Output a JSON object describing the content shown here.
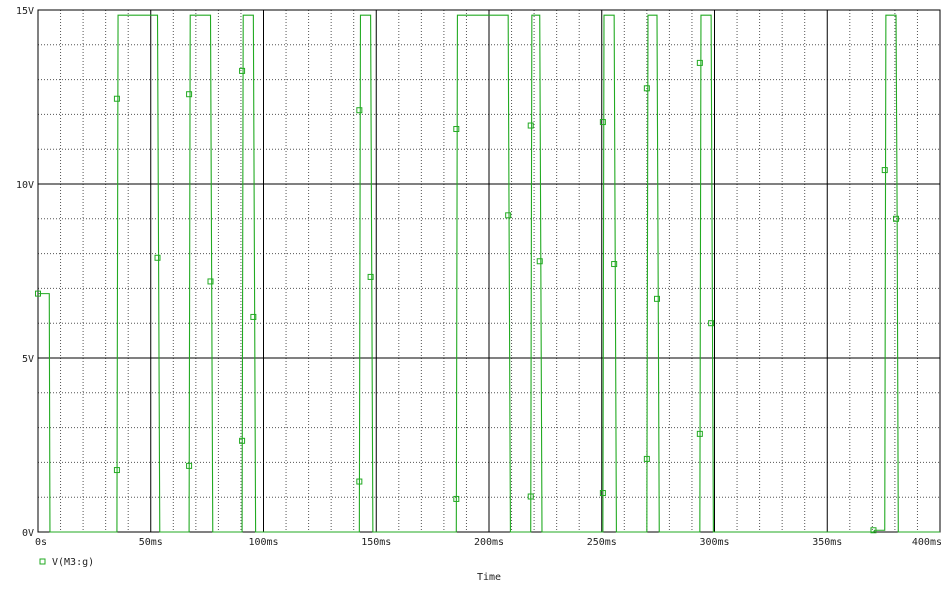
{
  "chart_data": {
    "type": "line",
    "title": "",
    "xlabel": "Time",
    "ylabel": "",
    "x_unit": "s",
    "y_unit": "V",
    "xlim": [
      0,
      0.4
    ],
    "ylim": [
      0,
      15
    ],
    "x_ticks": [
      {
        "value": 0,
        "label": "0s"
      },
      {
        "value": 0.05,
        "label": "50ms"
      },
      {
        "value": 0.1,
        "label": "100ms"
      },
      {
        "value": 0.15,
        "label": "150ms"
      },
      {
        "value": 0.2,
        "label": "200ms"
      },
      {
        "value": 0.25,
        "label": "250ms"
      },
      {
        "value": 0.3,
        "label": "300ms"
      },
      {
        "value": 0.35,
        "label": "350ms"
      },
      {
        "value": 0.4,
        "label": "400ms"
      }
    ],
    "y_ticks": [
      {
        "value": 0,
        "label": "0V"
      },
      {
        "value": 5,
        "label": "5V"
      },
      {
        "value": 10,
        "label": "10V"
      },
      {
        "value": 15,
        "label": "15V"
      }
    ],
    "grid": true,
    "minor_grid_dotted": true,
    "legend_position": "bottom-left",
    "series": [
      {
        "name": "V(M3:g)",
        "color": "#22aa22",
        "marker": "square",
        "points": [
          [
            0.0,
            6.85
          ],
          [
            0.005,
            6.85
          ],
          [
            0.0053,
            0.0
          ],
          [
            0.035,
            0.0
          ],
          [
            0.0355,
            14.85
          ],
          [
            0.053,
            14.85
          ],
          [
            0.054,
            0.0
          ],
          [
            0.067,
            0.0
          ],
          [
            0.0675,
            14.85
          ],
          [
            0.0765,
            14.85
          ],
          [
            0.0775,
            0.0
          ],
          [
            0.0905,
            0.0
          ],
          [
            0.091,
            14.85
          ],
          [
            0.0955,
            14.85
          ],
          [
            0.0965,
            0.0
          ],
          [
            0.1425,
            0.0
          ],
          [
            0.143,
            14.85
          ],
          [
            0.1475,
            14.85
          ],
          [
            0.1485,
            0.0
          ],
          [
            0.1855,
            0.0
          ],
          [
            0.186,
            14.85
          ],
          [
            0.2085,
            14.85
          ],
          [
            0.2095,
            0.0
          ],
          [
            0.2185,
            0.0
          ],
          [
            0.219,
            14.85
          ],
          [
            0.2225,
            14.85
          ],
          [
            0.2235,
            0.0
          ],
          [
            0.2505,
            0.0
          ],
          [
            0.251,
            14.85
          ],
          [
            0.2555,
            14.85
          ],
          [
            0.2565,
            0.0
          ],
          [
            0.27,
            0.0
          ],
          [
            0.2705,
            14.85
          ],
          [
            0.2745,
            14.85
          ],
          [
            0.2755,
            0.0
          ],
          [
            0.2935,
            0.0
          ],
          [
            0.294,
            14.85
          ],
          [
            0.2985,
            14.85
          ],
          [
            0.2995,
            0.0
          ],
          [
            0.3705,
            0.0
          ],
          [
            0.371,
            0.05
          ],
          [
            0.3755,
            0.05
          ],
          [
            0.376,
            14.85
          ],
          [
            0.3805,
            14.85
          ],
          [
            0.381,
            9.0
          ],
          [
            0.3815,
            0.0
          ],
          [
            0.4,
            0.0
          ]
        ],
        "markers": [
          [
            0.0,
            6.85
          ],
          [
            0.035,
            12.45
          ],
          [
            0.035,
            1.78
          ],
          [
            0.053,
            7.88
          ],
          [
            0.067,
            12.58
          ],
          [
            0.067,
            1.9
          ],
          [
            0.0765,
            7.2
          ],
          [
            0.0905,
            13.25
          ],
          [
            0.0905,
            2.62
          ],
          [
            0.0955,
            6.18
          ],
          [
            0.1425,
            12.12
          ],
          [
            0.1425,
            1.45
          ],
          [
            0.1475,
            7.33
          ],
          [
            0.1855,
            11.58
          ],
          [
            0.1855,
            0.95
          ],
          [
            0.2085,
            9.1
          ],
          [
            0.2185,
            11.68
          ],
          [
            0.2185,
            1.02
          ],
          [
            0.2225,
            7.78
          ],
          [
            0.2505,
            11.78
          ],
          [
            0.2505,
            1.12
          ],
          [
            0.2555,
            7.7
          ],
          [
            0.27,
            12.75
          ],
          [
            0.27,
            2.1
          ],
          [
            0.2745,
            6.7
          ],
          [
            0.2935,
            13.48
          ],
          [
            0.2935,
            2.82
          ],
          [
            0.2985,
            6.0
          ],
          [
            0.3705,
            0.05
          ],
          [
            0.3755,
            10.4
          ],
          [
            0.3805,
            9.0
          ]
        ]
      }
    ]
  }
}
